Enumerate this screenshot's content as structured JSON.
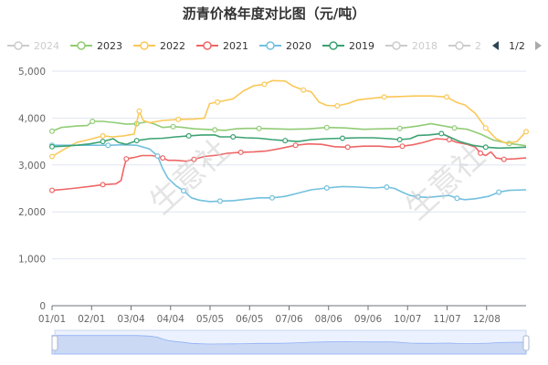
{
  "chart_data": {
    "type": "line",
    "title": "沥青价格年度对比图（元/吨）",
    "x_ticks": [
      "01/01",
      "02/01",
      "03/04",
      "04/04",
      "05/05",
      "06/05",
      "07/06",
      "08/06",
      "09/06",
      "10/07",
      "11/07",
      "12/08"
    ],
    "y_ticks": [
      "0",
      "1,000",
      "2,000",
      "3,000",
      "4,000",
      "5,000"
    ],
    "ylim": [
      0,
      5000
    ],
    "xlim": [
      1,
      365
    ],
    "grid": {
      "horizontal": true,
      "vertical": false
    },
    "legend": {
      "placement": "top",
      "page": "1/2",
      "items": [
        {
          "name": "2024",
          "visible": false
        },
        {
          "name": "2023",
          "visible": true
        },
        {
          "name": "2022",
          "visible": true
        },
        {
          "name": "2021",
          "visible": true
        },
        {
          "name": "2020",
          "visible": true
        },
        {
          "name": "2019",
          "visible": true
        },
        {
          "name": "2018",
          "visible": false
        },
        {
          "name": "2",
          "visible": false
        }
      ]
    },
    "series": [
      {
        "name": "2023",
        "color": "#91cc75",
        "points": [
          [
            1,
            3720
          ],
          [
            8,
            3800
          ],
          [
            20,
            3830
          ],
          [
            28,
            3840
          ],
          [
            32,
            3930
          ],
          [
            40,
            3930
          ],
          [
            50,
            3900
          ],
          [
            58,
            3870
          ],
          [
            66,
            3880
          ],
          [
            74,
            3920
          ],
          [
            80,
            3870
          ],
          [
            86,
            3800
          ],
          [
            94,
            3820
          ],
          [
            102,
            3800
          ],
          [
            110,
            3770
          ],
          [
            118,
            3760
          ],
          [
            126,
            3750
          ],
          [
            134,
            3740
          ],
          [
            142,
            3770
          ],
          [
            150,
            3780
          ],
          [
            160,
            3780
          ],
          [
            172,
            3770
          ],
          [
            184,
            3760
          ],
          [
            198,
            3770
          ],
          [
            212,
            3800
          ],
          [
            226,
            3790
          ],
          [
            240,
            3760
          ],
          [
            254,
            3770
          ],
          [
            268,
            3780
          ],
          [
            282,
            3830
          ],
          [
            292,
            3880
          ],
          [
            300,
            3840
          ],
          [
            310,
            3790
          ],
          [
            320,
            3760
          ],
          [
            330,
            3660
          ],
          [
            340,
            3530
          ],
          [
            352,
            3460
          ],
          [
            365,
            3410
          ]
        ]
      },
      {
        "name": "2022",
        "color": "#fac858",
        "points": [
          [
            1,
            3180
          ],
          [
            10,
            3330
          ],
          [
            20,
            3480
          ],
          [
            32,
            3560
          ],
          [
            40,
            3620
          ],
          [
            48,
            3600
          ],
          [
            56,
            3620
          ],
          [
            64,
            3660
          ],
          [
            68,
            4150
          ],
          [
            71,
            3950
          ],
          [
            76,
            3900
          ],
          [
            86,
            3950
          ],
          [
            98,
            3970
          ],
          [
            110,
            3980
          ],
          [
            118,
            4000
          ],
          [
            122,
            4310
          ],
          [
            128,
            4340
          ],
          [
            140,
            4410
          ],
          [
            148,
            4580
          ],
          [
            156,
            4690
          ],
          [
            164,
            4720
          ],
          [
            170,
            4800
          ],
          [
            180,
            4790
          ],
          [
            186,
            4680
          ],
          [
            194,
            4600
          ],
          [
            200,
            4560
          ],
          [
            206,
            4340
          ],
          [
            212,
            4270
          ],
          [
            220,
            4260
          ],
          [
            228,
            4310
          ],
          [
            236,
            4390
          ],
          [
            246,
            4420
          ],
          [
            256,
            4450
          ],
          [
            268,
            4460
          ],
          [
            280,
            4470
          ],
          [
            292,
            4470
          ],
          [
            304,
            4450
          ],
          [
            312,
            4330
          ],
          [
            318,
            4280
          ],
          [
            326,
            4100
          ],
          [
            334,
            3790
          ],
          [
            342,
            3560
          ],
          [
            350,
            3460
          ],
          [
            358,
            3500
          ],
          [
            365,
            3710
          ]
        ]
      },
      {
        "name": "2021",
        "color": "#ee6666",
        "points": [
          [
            1,
            2460
          ],
          [
            10,
            2480
          ],
          [
            20,
            2510
          ],
          [
            32,
            2550
          ],
          [
            40,
            2580
          ],
          [
            50,
            2600
          ],
          [
            54,
            2670
          ],
          [
            56,
            2920
          ],
          [
            58,
            3130
          ],
          [
            64,
            3160
          ],
          [
            70,
            3200
          ],
          [
            78,
            3200
          ],
          [
            86,
            3150
          ],
          [
            90,
            3100
          ],
          [
            96,
            3100
          ],
          [
            104,
            3080
          ],
          [
            110,
            3120
          ],
          [
            118,
            3180
          ],
          [
            128,
            3210
          ],
          [
            136,
            3250
          ],
          [
            146,
            3270
          ],
          [
            156,
            3280
          ],
          [
            166,
            3300
          ],
          [
            176,
            3350
          ],
          [
            188,
            3420
          ],
          [
            198,
            3450
          ],
          [
            208,
            3440
          ],
          [
            218,
            3390
          ],
          [
            228,
            3380
          ],
          [
            240,
            3400
          ],
          [
            252,
            3400
          ],
          [
            262,
            3380
          ],
          [
            270,
            3400
          ],
          [
            278,
            3430
          ],
          [
            286,
            3480
          ],
          [
            296,
            3560
          ],
          [
            306,
            3540
          ],
          [
            312,
            3480
          ],
          [
            320,
            3440
          ],
          [
            326,
            3380
          ],
          [
            330,
            3250
          ],
          [
            334,
            3200
          ],
          [
            338,
            3280
          ],
          [
            342,
            3150
          ],
          [
            348,
            3120
          ],
          [
            356,
            3130
          ],
          [
            365,
            3150
          ]
        ]
      },
      {
        "name": "2020",
        "color": "#73c0de",
        "points": [
          [
            1,
            3420
          ],
          [
            10,
            3420
          ],
          [
            20,
            3420
          ],
          [
            32,
            3420
          ],
          [
            44,
            3420
          ],
          [
            56,
            3430
          ],
          [
            66,
            3420
          ],
          [
            76,
            3340
          ],
          [
            82,
            3190
          ],
          [
            86,
            2920
          ],
          [
            90,
            2720
          ],
          [
            96,
            2560
          ],
          [
            102,
            2450
          ],
          [
            108,
            2300
          ],
          [
            114,
            2250
          ],
          [
            122,
            2220
          ],
          [
            130,
            2230
          ],
          [
            140,
            2240
          ],
          [
            150,
            2270
          ],
          [
            160,
            2300
          ],
          [
            170,
            2300
          ],
          [
            180,
            2330
          ],
          [
            190,
            2400
          ],
          [
            200,
            2470
          ],
          [
            212,
            2510
          ],
          [
            224,
            2540
          ],
          [
            236,
            2530
          ],
          [
            248,
            2510
          ],
          [
            258,
            2530
          ],
          [
            264,
            2500
          ],
          [
            270,
            2420
          ],
          [
            276,
            2350
          ],
          [
            282,
            2320
          ],
          [
            290,
            2310
          ],
          [
            298,
            2330
          ],
          [
            306,
            2350
          ],
          [
            312,
            2290
          ],
          [
            318,
            2260
          ],
          [
            326,
            2280
          ],
          [
            336,
            2330
          ],
          [
            344,
            2420
          ],
          [
            352,
            2460
          ],
          [
            365,
            2470
          ]
        ]
      },
      {
        "name": "2019",
        "color": "#3ba272",
        "points": [
          [
            1,
            3390
          ],
          [
            10,
            3400
          ],
          [
            20,
            3420
          ],
          [
            30,
            3450
          ],
          [
            40,
            3500
          ],
          [
            48,
            3560
          ],
          [
            52,
            3480
          ],
          [
            58,
            3440
          ],
          [
            66,
            3520
          ],
          [
            76,
            3560
          ],
          [
            86,
            3570
          ],
          [
            96,
            3600
          ],
          [
            106,
            3620
          ],
          [
            116,
            3640
          ],
          [
            126,
            3640
          ],
          [
            130,
            3600
          ],
          [
            140,
            3600
          ],
          [
            150,
            3580
          ],
          [
            160,
            3570
          ],
          [
            170,
            3540
          ],
          [
            180,
            3520
          ],
          [
            190,
            3500
          ],
          [
            200,
            3540
          ],
          [
            212,
            3560
          ],
          [
            224,
            3570
          ],
          [
            236,
            3580
          ],
          [
            248,
            3580
          ],
          [
            260,
            3560
          ],
          [
            268,
            3540
          ],
          [
            276,
            3560
          ],
          [
            282,
            3630
          ],
          [
            290,
            3640
          ],
          [
            300,
            3670
          ],
          [
            306,
            3600
          ],
          [
            314,
            3500
          ],
          [
            324,
            3420
          ],
          [
            334,
            3380
          ],
          [
            344,
            3360
          ],
          [
            356,
            3370
          ],
          [
            365,
            3380
          ]
        ]
      }
    ],
    "watermark": [
      "生意社",
      "生意社"
    ]
  }
}
